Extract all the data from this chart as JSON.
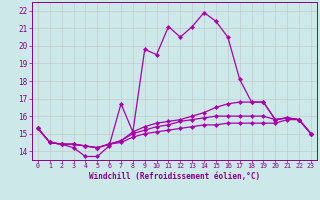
{
  "xlabel": "Windchill (Refroidissement éolien,°C)",
  "bg_color": "#cce8e8",
  "line_color": "#aa00aa",
  "grid_color": "#bbbbbb",
  "xlim": [
    -0.5,
    23.5
  ],
  "ylim": [
    13.5,
    22.5
  ],
  "yticks": [
    14,
    15,
    16,
    17,
    18,
    19,
    20,
    21,
    22
  ],
  "xticks": [
    0,
    1,
    2,
    3,
    4,
    5,
    6,
    7,
    8,
    9,
    10,
    11,
    12,
    13,
    14,
    15,
    16,
    17,
    18,
    19,
    20,
    21,
    22,
    23
  ],
  "series": [
    [
      15.3,
      14.5,
      14.4,
      14.2,
      13.7,
      13.7,
      14.3,
      16.7,
      15.1,
      19.8,
      19.5,
      21.1,
      20.5,
      21.1,
      21.9,
      21.4,
      20.5,
      18.1,
      16.8,
      16.8,
      15.8,
      15.9,
      15.8,
      15.0
    ],
    [
      15.3,
      14.5,
      14.4,
      14.4,
      14.3,
      14.2,
      14.4,
      14.6,
      15.1,
      15.4,
      15.6,
      15.7,
      15.8,
      16.0,
      16.2,
      16.5,
      16.7,
      16.8,
      16.8,
      16.8,
      15.8,
      15.9,
      15.8,
      15.0
    ],
    [
      15.3,
      14.5,
      14.4,
      14.4,
      14.3,
      14.2,
      14.4,
      14.6,
      15.0,
      15.2,
      15.4,
      15.5,
      15.7,
      15.8,
      15.9,
      16.0,
      16.0,
      16.0,
      16.0,
      16.0,
      15.8,
      15.9,
      15.8,
      15.0
    ],
    [
      15.3,
      14.5,
      14.4,
      14.4,
      14.3,
      14.2,
      14.4,
      14.5,
      14.8,
      15.0,
      15.1,
      15.2,
      15.3,
      15.4,
      15.5,
      15.5,
      15.6,
      15.6,
      15.6,
      15.6,
      15.6,
      15.8,
      15.8,
      15.0
    ]
  ],
  "xlabel_fontsize": 5.5,
  "ytick_fontsize": 5.5,
  "xtick_fontsize": 4.8,
  "linewidth": 0.9,
  "markersize": 2.2
}
